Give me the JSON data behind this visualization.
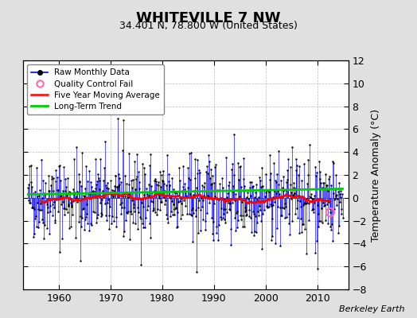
{
  "title": "WHITEVILLE 7 NW",
  "subtitle": "34.401 N, 78.800 W (United States)",
  "ylabel": "Temperature Anomaly (°C)",
  "credit": "Berkeley Earth",
  "xlim": [
    1953,
    2016
  ],
  "ylim": [
    -8,
    12
  ],
  "yticks": [
    -8,
    -6,
    -4,
    -2,
    0,
    2,
    4,
    6,
    8,
    10,
    12
  ],
  "xticks": [
    1960,
    1970,
    1980,
    1990,
    2000,
    2010
  ],
  "start_year": 1954,
  "end_year": 2014,
  "raw_color": "#0000FF",
  "ma_color": "#FF0000",
  "trend_color": "#00CC00",
  "qc_color": "#FF69B4",
  "dot_color": "#000000",
  "bg_color": "#E0E0E0",
  "plot_bg": "#FFFFFF",
  "seed": 42,
  "trend_intercept": 0.3,
  "trend_slope_per_year": 0.008
}
